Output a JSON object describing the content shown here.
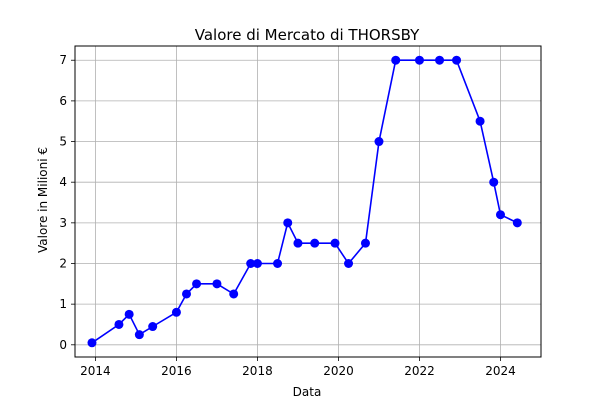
{
  "chart_data": {
    "type": "line",
    "title": "Valore di Mercato di THORSBY",
    "xlabel": "Data",
    "ylabel": "Valore in Milioni €",
    "x_axis": "date",
    "xlim": [
      "2013-07-01",
      "2025-01-01"
    ],
    "ylim": [
      -0.3,
      7.35
    ],
    "xticks": [
      "2014",
      "2016",
      "2018",
      "2020",
      "2022",
      "2024"
    ],
    "yticks": [
      0,
      1,
      2,
      3,
      4,
      5,
      6,
      7
    ],
    "grid": true,
    "color": "#0000ff",
    "series": [
      {
        "name": "",
        "x": [
          "2013-12-01",
          "2014-08-01",
          "2014-11-01",
          "2015-02-01",
          "2015-06-01",
          "2016-01-01",
          "2016-04-01",
          "2016-07-01",
          "2017-01-01",
          "2017-06-01",
          "2017-11-01",
          "2018-01-01",
          "2018-07-01",
          "2018-10-01",
          "2019-01-01",
          "2019-06-01",
          "2019-12-01",
          "2020-04-01",
          "2020-09-01",
          "2021-01-01",
          "2021-06-01",
          "2022-01-01",
          "2022-07-01",
          "2022-12-01",
          "2023-07-01",
          "2023-11-01",
          "2024-01-01",
          "2024-06-01"
        ],
        "y": [
          0.05,
          0.5,
          0.75,
          0.25,
          0.45,
          0.8,
          1.25,
          1.5,
          1.5,
          1.25,
          2.0,
          2.0,
          2.0,
          3.0,
          2.5,
          2.5,
          2.5,
          2.0,
          2.5,
          5.0,
          7.0,
          7.0,
          7.0,
          7.0,
          5.5,
          4.0,
          3.2,
          3.0
        ]
      }
    ]
  }
}
